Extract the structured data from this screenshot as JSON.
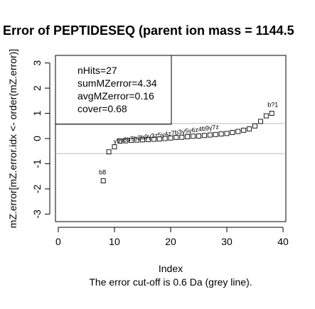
{
  "title": "Error of PEPTIDESEQ (parent ion mass = 1144.5",
  "colors": {
    "grey_line": "#bebebe",
    "ink": "#000000",
    "background": "#ffffff"
  },
  "chart_data": {
    "type": "scatter",
    "title": "Error of PEPTIDESEQ (parent ion mass = 1144.5",
    "xlabel": "Index",
    "ylabel": "mZ.error[mZ.error.idx <- order(mZ.error)]",
    "subtitle": "The error cut-off is 0.6 Da (grey line).",
    "xlim": [
      -0.5,
      40.5
    ],
    "ylim": [
      -3.3,
      3.3
    ],
    "x_ticks": [
      0,
      10,
      20,
      30,
      40
    ],
    "y_ticks": [
      -3,
      -2,
      -1,
      0,
      1,
      2,
      3
    ],
    "cutoff_lines": [
      0.6,
      -0.6
    ],
    "legend": [
      "nHits=27",
      "sumMZerror=4.34",
      "avgMZerror=0.16",
      "cover=0.68"
    ],
    "legend_position": "top-left",
    "points": [
      {
        "x": 8,
        "y": -1.68,
        "label": "b8"
      },
      {
        "x": 9,
        "y": -0.53,
        "label": ""
      },
      {
        "x": 10,
        "y": -0.33,
        "label": ""
      },
      {
        "x": 11,
        "y": -0.1,
        "label": ""
      },
      {
        "x": 12,
        "y": -0.09,
        "label": ""
      },
      {
        "x": 13,
        "y": -0.07,
        "label": ""
      },
      {
        "x": 14,
        "y": -0.06,
        "label": ""
      },
      {
        "x": 15,
        "y": -0.05,
        "label": ""
      },
      {
        "x": 16,
        "y": -0.04,
        "label": ""
      },
      {
        "x": 17,
        "y": -0.03,
        "label": ""
      },
      {
        "x": 18,
        "y": -0.02,
        "label": ""
      },
      {
        "x": 19,
        "y": 0.0,
        "label": ""
      },
      {
        "x": 20,
        "y": 0.02,
        "label": ""
      },
      {
        "x": 21,
        "y": 0.04,
        "label": ""
      },
      {
        "x": 22,
        "y": 0.05,
        "label": ""
      },
      {
        "x": 23,
        "y": 0.07,
        "label": ""
      },
      {
        "x": 24,
        "y": 0.09,
        "label": ""
      },
      {
        "x": 25,
        "y": 0.1,
        "label": ""
      },
      {
        "x": 26,
        "y": 0.12,
        "label": ""
      },
      {
        "x": 27,
        "y": 0.14,
        "label": ""
      },
      {
        "x": 28,
        "y": 0.16,
        "label": ""
      },
      {
        "x": 29,
        "y": 0.18,
        "label": ""
      },
      {
        "x": 30,
        "y": 0.2,
        "label": ""
      },
      {
        "x": 31,
        "y": 0.24,
        "label": ""
      },
      {
        "x": 32,
        "y": 0.28,
        "label": ""
      },
      {
        "x": 33,
        "y": 0.33,
        "label": ""
      },
      {
        "x": 34,
        "y": 0.38,
        "label": ""
      },
      {
        "x": 35,
        "y": 0.5,
        "label": ""
      },
      {
        "x": 36,
        "y": 0.68,
        "label": ""
      },
      {
        "x": 37,
        "y": 0.9,
        "label": ""
      },
      {
        "x": 38,
        "y": 1.0,
        "label": "b?1"
      }
    ],
    "ion_labels": [
      "y9",
      "y8",
      "b7",
      "b2",
      "z6",
      "z8",
      "b6",
      "b9",
      "y3",
      "z5",
      "y4",
      "z7",
      "b3",
      "y5",
      "y6",
      "z4",
      "b8",
      "b4",
      "z9",
      "y7",
      "b?1"
    ],
    "ion_label_strip": "y9y8b7b2b9y3z5y4z7b3y5y6z4b9y7z"
  }
}
